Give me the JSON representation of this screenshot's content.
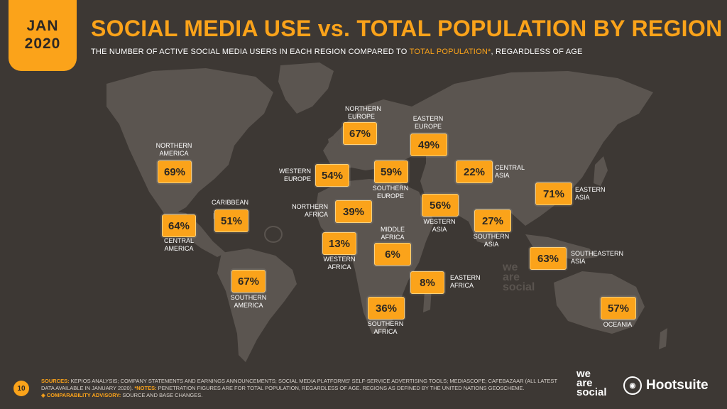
{
  "header": {
    "month": "JAN",
    "year": "2020",
    "title": "SOCIAL MEDIA USE vs. TOTAL POPULATION BY REGION",
    "subtitle_pre": "THE NUMBER OF ACTIVE SOCIAL MEDIA USERS IN EACH REGION COMPARED TO ",
    "subtitle_hl": "TOTAL POPULATION*",
    "subtitle_post": ", REGARDLESS OF AGE"
  },
  "colors": {
    "accent": "#fba31a",
    "background": "#3d3834",
    "land": "#5b5550"
  },
  "regions": {
    "northern_america": {
      "name": "NORTHERN AMERICA",
      "value": "69%"
    },
    "central_america": {
      "name": "CENTRAL AMERICA",
      "value": "64%"
    },
    "caribbean": {
      "name": "CARIBBEAN",
      "value": "51%"
    },
    "southern_america": {
      "name": "SOUTHERN AMERICA",
      "value": "67%"
    },
    "northern_europe": {
      "name": "NORTHERN EUROPE",
      "value": "67%"
    },
    "western_europe": {
      "name": "WESTERN EUROPE",
      "value": "54%"
    },
    "southern_europe": {
      "name": "SOUTHERN EUROPE",
      "value": "59%"
    },
    "eastern_europe": {
      "name": "EASTERN EUROPE",
      "value": "49%"
    },
    "northern_africa": {
      "name": "NORTHERN AFRICA",
      "value": "39%"
    },
    "western_africa": {
      "name": "WESTERN AFRICA",
      "value": "13%"
    },
    "middle_africa": {
      "name": "MIDDLE AFRICA",
      "value": "6%"
    },
    "eastern_africa": {
      "name": "EASTERN AFRICA",
      "value": "8%"
    },
    "southern_africa": {
      "name": "SOUTHERN AFRICA",
      "value": "36%"
    },
    "western_asia": {
      "name": "WESTERN ASIA",
      "value": "56%"
    },
    "central_asia": {
      "name": "CENTRAL ASIA",
      "value": "22%"
    },
    "southern_asia": {
      "name": "SOUTHERN ASIA",
      "value": "27%"
    },
    "eastern_asia": {
      "name": "EASTERN ASIA",
      "value": "71%"
    },
    "southeastern_asia": {
      "name": "SOUTHEASTERN ASIA",
      "value": "63%"
    },
    "oceania": {
      "name": "OCEANIA",
      "value": "57%"
    }
  },
  "footer": {
    "page_number": "10",
    "sources_label": "SOURCES:",
    "sources_text": " KEPIOS ANALYSIS; COMPANY STATEMENTS AND EARNINGS ANNOUNCEMENTS; SOCIAL MEDIA PLATFORMS' SELF-SERVICE ADVERTISING TOOLS; MEDIASCOPE; CAFEBAZAAR (ALL LATEST DATA AVAILABLE IN JANUARY 2020). ",
    "notes_label": "*NOTES:",
    "notes_text": " PENETRATION FIGURES ARE FOR TOTAL POPULATION, REGARDLESS OF AGE. REGIONS AS DEFINED BY THE UNITED NATIONS GEOSCHEME.",
    "advisory_label": "◈ COMPARABILITY ADVISORY:",
    "advisory_text": " SOURCE AND BASE CHANGES.",
    "logo_was": "we are social",
    "logo_hootsuite": "Hootsuite"
  }
}
